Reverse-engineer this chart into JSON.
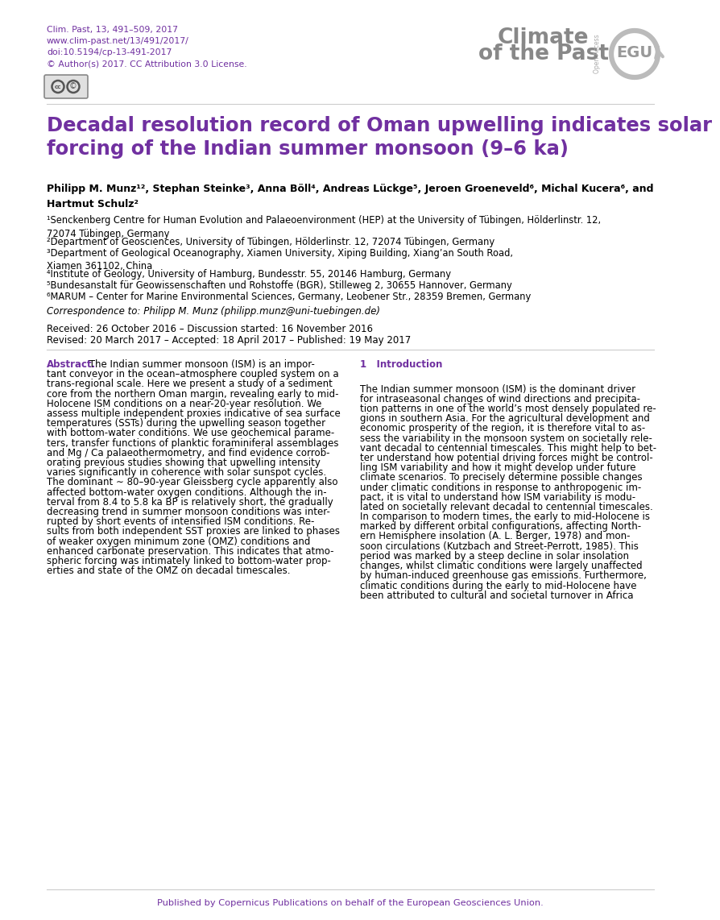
{
  "bg_color": "#ffffff",
  "purple": "#7030A0",
  "black": "#000000",
  "gray_text": "#888888",
  "light_gray": "#aaaaaa",
  "header_info": [
    "Clim. Past, 13, 491–509, 2017",
    "www.clim-past.net/13/491/2017/",
    "doi:10.5194/cp-13-491-2017",
    "© Author(s) 2017. CC Attribution 3.0 License."
  ],
  "title": "Decadal resolution record of Oman upwelling indicates solar\nforcing of the Indian summer monsoon (9–6 ka)",
  "authors": "Philipp M. Munz¹², Stephan Steinke³, Anna Böll⁴, Andreas Lückge⁵, Jeroen Groeneveld⁶, Michal Kucera⁶, and\nHartmut Schulz²",
  "affiliations": [
    "¹Senckenberg Centre for Human Evolution and Palaeoenvironment (HEP) at the University of Tübingen, Hölderlinstr. 12,\n72074 Tübingen, Germany",
    "²Department of Geosciences, University of Tübingen, Hölderlinstr. 12, 72074 Tübingen, Germany",
    "³Department of Geological Oceanography, Xiamen University, Xiping Building, Xiang’an South Road,\nXiamen 361102, China",
    "⁴Institute of Geology, University of Hamburg, Bundesstr. 55, 20146 Hamburg, Germany",
    "⁵Bundesanstalt für Geowissenschaften und Rohstoffe (BGR), Stilleweg 2, 30655 Hannover, Germany",
    "⁶MARUM – Center for Marine Environmental Sciences, Germany, Leobener Str., 28359 Bremen, Germany"
  ],
  "correspondence": "Correspondence to: Philipp M. Munz (philipp.munz@uni-tuebingen.de)",
  "received": "Received: 26 October 2016 – Discussion started: 16 November 2016",
  "revised": "Revised: 20 March 2017 – Accepted: 18 April 2017 – Published: 19 May 2017",
  "abstract_label": "Abstract.",
  "abstract_lines": [
    " The Indian summer monsoon (ISM) is an impor-",
    "tant conveyor in the ocean–atmosphere coupled system on a",
    "trans-regional scale. Here we present a study of a sediment",
    "core from the northern Oman margin, revealing early to mid-",
    "Holocene ISM conditions on a near-20-year resolution. We",
    "assess multiple independent proxies indicative of sea surface",
    "temperatures (SSTs) during the upwelling season together",
    "with bottom-water conditions. We use geochemical parame-",
    "ters, transfer functions of planktic foraminiferal assemblages",
    "and Mg / Ca palaeothermometry, and find evidence corrob-",
    "orating previous studies showing that upwelling intensity",
    "varies significantly in coherence with solar sunspot cycles.",
    "The dominant ∼ 80–90-year Gleissberg cycle apparently also",
    "affected bottom-water oxygen conditions. Although the in-",
    "terval from 8.4 to 5.8 ka BP is relatively short, the gradually",
    "decreasing trend in summer monsoon conditions was inter-",
    "rupted by short events of intensified ISM conditions. Re-",
    "sults from both independent SST proxies are linked to phases",
    "of weaker oxygen minimum zone (OMZ) conditions and",
    "enhanced carbonate preservation. This indicates that atmo-",
    "spheric forcing was intimately linked to bottom-water prop-",
    "erties and state of the OMZ on decadal timescales."
  ],
  "intro_heading": "1   Introduction",
  "intro_lines": [
    "The Indian summer monsoon (ISM) is the dominant driver",
    "for intraseasonal changes of wind directions and precipita-",
    "tion patterns in one of the world’s most densely populated re-",
    "gions in southern Asia. For the agricultural development and",
    "economic prosperity of the region, it is therefore vital to as-",
    "sess the variability in the monsoon system on societally rele-",
    "vant decadal to centennial timescales. This might help to bet-",
    "ter understand how potential driving forces might be control-",
    "ling ISM variability and how it might develop under future",
    "climate scenarios. To precisely determine possible changes",
    "under climatic conditions in response to anthropogenic im-",
    "pact, it is vital to understand how ISM variability is modu-",
    "lated on societally relevant decadal to centennial timescales.",
    "In comparison to modern times, the early to mid-Holocene is",
    "marked by different orbital configurations, affecting North-",
    "ern Hemisphere insolation (A. L. Berger, 1978) and mon-",
    "soon circulations (Kutzbach and Street-Perrott, 1985). This",
    "period was marked by a steep decline in solar insolation",
    "changes, whilst climatic conditions were largely unaffected",
    "by human-induced greenhouse gas emissions. Furthermore,",
    "climatic conditions during the early to mid-Holocene have",
    "been attributed to cultural and societal turnover in Africa"
  ],
  "footer": "Published by Copernicus Publications on behalf of the European Geosciences Union."
}
